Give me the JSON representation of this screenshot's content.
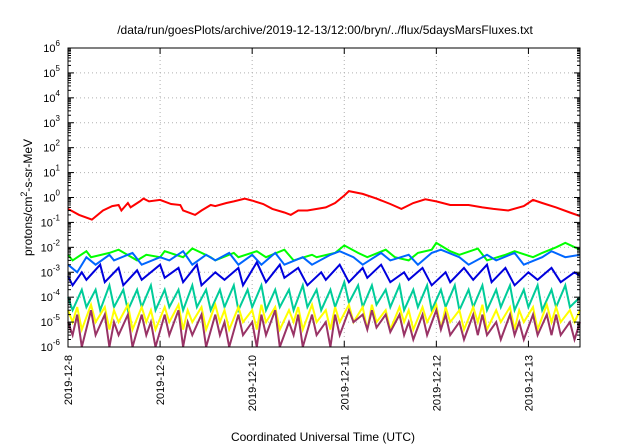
{
  "chart_data": {
    "type": "line",
    "title": "/data/run/goesPlots/archive/2019-12-13/12:00/bryn/../flux/5daysMarsFluxes.txt",
    "xlabel": "Coordinated Universal Time (UTC)",
    "ylabel": {
      "base": "protons/cm",
      "sup": "2",
      "rest": "-s-sr-MeV"
    },
    "y_scale": "log",
    "ylim": [
      1e-06,
      1000000
    ],
    "xlim": [
      0,
      5.56
    ],
    "x_unit": "days since 2019-12-08 00:00 UTC",
    "grid": true,
    "legend": "none",
    "x_ticks": [
      {
        "value": 0,
        "label": "2019-12-8"
      },
      {
        "value": 1,
        "label": "2019-12-9"
      },
      {
        "value": 2,
        "label": "2019-12-10"
      },
      {
        "value": 3,
        "label": "2019-12-11"
      },
      {
        "value": 4,
        "label": "2019-12-12"
      },
      {
        "value": 5,
        "label": "2019-12-13"
      }
    ],
    "y_ticks": [
      {
        "exp": -6,
        "label": "10",
        "sup": "-6"
      },
      {
        "exp": -5,
        "label": "10",
        "sup": "-5"
      },
      {
        "exp": -4,
        "label": "10",
        "sup": "-4"
      },
      {
        "exp": -3,
        "label": "10",
        "sup": "-3"
      },
      {
        "exp": -2,
        "label": "10",
        "sup": "-2"
      },
      {
        "exp": -1,
        "label": "10",
        "sup": "-1"
      },
      {
        "exp": 0,
        "label": "10",
        "sup": "0"
      },
      {
        "exp": 1,
        "label": "10",
        "sup": "1"
      },
      {
        "exp": 2,
        "label": "10",
        "sup": "2"
      },
      {
        "exp": 3,
        "label": "10",
        "sup": "3"
      },
      {
        "exp": 4,
        "label": "10",
        "sup": "4"
      },
      {
        "exp": 5,
        "label": "10",
        "sup": "5"
      },
      {
        "exp": 6,
        "label": "10",
        "sup": "6"
      }
    ],
    "series": [
      {
        "color": "#ff0000",
        "x": [
          0.0,
          0.12,
          0.26,
          0.38,
          0.48,
          0.55,
          0.58,
          0.65,
          0.68,
          0.78,
          0.82,
          0.88,
          1.0,
          1.12,
          1.22,
          1.25,
          1.38,
          1.45,
          1.55,
          1.6,
          1.72,
          1.8,
          1.92,
          2.0,
          2.12,
          2.22,
          2.35,
          2.42,
          2.5,
          2.6,
          2.8,
          2.9,
          3.0,
          3.05,
          3.2,
          3.35,
          3.5,
          3.62,
          3.75,
          3.88,
          4.0,
          4.15,
          4.35,
          4.5,
          4.62,
          4.78,
          4.95,
          5.05,
          5.15,
          5.3,
          5.45,
          5.56
        ],
        "y": [
          0.35,
          0.2,
          0.13,
          0.3,
          0.45,
          0.5,
          0.3,
          0.6,
          0.4,
          0.7,
          0.9,
          0.7,
          0.8,
          0.55,
          0.5,
          0.3,
          0.2,
          0.3,
          0.5,
          0.45,
          0.6,
          0.7,
          0.9,
          0.75,
          0.55,
          0.35,
          0.25,
          0.2,
          0.3,
          0.3,
          0.4,
          0.6,
          1.2,
          1.8,
          1.4,
          0.9,
          0.55,
          0.35,
          0.6,
          0.85,
          0.7,
          0.5,
          0.5,
          0.4,
          0.35,
          0.3,
          0.45,
          0.8,
          0.6,
          0.4,
          0.25,
          0.18
        ]
      },
      {
        "color": "#00ff00",
        "x": [
          0.0,
          0.05,
          0.2,
          0.25,
          0.45,
          0.55,
          0.75,
          0.85,
          1.0,
          1.05,
          1.25,
          1.35,
          1.55,
          1.6,
          1.8,
          1.85,
          2.05,
          2.15,
          2.35,
          2.45,
          2.65,
          2.7,
          2.9,
          3.0,
          3.15,
          3.25,
          3.45,
          3.55,
          3.7,
          3.8,
          3.95,
          4.0,
          4.15,
          4.25,
          4.45,
          4.55,
          4.75,
          4.85,
          5.05,
          5.15,
          5.3,
          5.4,
          5.56
        ],
        "y": [
          0.005,
          0.003,
          0.007,
          0.004,
          0.006,
          0.008,
          0.003,
          0.005,
          0.004,
          0.007,
          0.004,
          0.009,
          0.004,
          0.003,
          0.006,
          0.004,
          0.007,
          0.004,
          0.008,
          0.003,
          0.005,
          0.004,
          0.006,
          0.012,
          0.006,
          0.004,
          0.008,
          0.004,
          0.003,
          0.006,
          0.008,
          0.015,
          0.007,
          0.005,
          0.009,
          0.003,
          0.005,
          0.007,
          0.004,
          0.006,
          0.01,
          0.015,
          0.008
        ]
      },
      {
        "color": "#0066ff",
        "x": [
          0.0,
          0.1,
          0.2,
          0.3,
          0.45,
          0.5,
          0.7,
          0.8,
          1.0,
          1.1,
          1.25,
          1.35,
          1.5,
          1.6,
          1.75,
          1.85,
          2.0,
          2.1,
          2.25,
          2.35,
          2.55,
          2.65,
          2.85,
          2.95,
          3.1,
          3.2,
          3.4,
          3.5,
          3.7,
          3.8,
          3.95,
          4.05,
          4.25,
          4.35,
          4.55,
          4.65,
          4.85,
          4.95,
          5.15,
          5.25,
          5.4,
          5.56
        ],
        "y": [
          0.002,
          0.001,
          0.004,
          0.002,
          0.005,
          0.003,
          0.006,
          0.002,
          0.004,
          0.003,
          0.007,
          0.002,
          0.005,
          0.003,
          0.006,
          0.002,
          0.005,
          0.002,
          0.006,
          0.002,
          0.004,
          0.002,
          0.005,
          0.007,
          0.004,
          0.002,
          0.006,
          0.003,
          0.005,
          0.002,
          0.006,
          0.008,
          0.004,
          0.002,
          0.005,
          0.003,
          0.006,
          0.002,
          0.004,
          0.007,
          0.004,
          0.005
        ]
      },
      {
        "color": "#0000dd",
        "x": [
          0.0,
          0.05,
          0.15,
          0.2,
          0.35,
          0.4,
          0.55,
          0.6,
          0.75,
          0.8,
          1.0,
          1.05,
          1.2,
          1.25,
          1.4,
          1.45,
          1.6,
          1.7,
          1.85,
          1.9,
          2.05,
          2.15,
          2.3,
          2.35,
          2.5,
          2.6,
          2.75,
          2.8,
          2.95,
          3.05,
          3.2,
          3.25,
          3.4,
          3.5,
          3.65,
          3.7,
          3.85,
          3.95,
          4.1,
          4.15,
          4.3,
          4.4,
          4.55,
          4.6,
          4.75,
          4.85,
          5.0,
          5.1,
          5.25,
          5.35,
          5.5,
          5.56
        ],
        "y": [
          0.0007,
          0.0003,
          0.001,
          0.0005,
          0.002,
          0.0004,
          0.0015,
          0.0003,
          0.0012,
          0.0005,
          0.002,
          0.0006,
          0.0015,
          0.0004,
          0.002,
          0.0003,
          0.001,
          0.0005,
          0.0015,
          0.0003,
          0.0025,
          0.0004,
          0.002,
          0.0006,
          0.0015,
          0.0003,
          0.001,
          0.0005,
          0.002,
          0.0004,
          0.0015,
          0.0006,
          0.002,
          0.0004,
          0.001,
          0.0005,
          0.0015,
          0.0003,
          0.001,
          0.0004,
          0.0015,
          0.0005,
          0.002,
          0.0004,
          0.0015,
          0.0003,
          0.001,
          0.0005,
          0.0015,
          0.0004,
          0.001,
          0.0007
        ]
      },
      {
        "color": "#00cc99",
        "x": [
          0.0,
          0.05,
          0.15,
          0.2,
          0.3,
          0.35,
          0.45,
          0.5,
          0.6,
          0.65,
          0.75,
          0.8,
          0.9,
          0.95,
          1.05,
          1.1,
          1.2,
          1.25,
          1.35,
          1.4,
          1.5,
          1.55,
          1.65,
          1.7,
          1.8,
          1.85,
          1.95,
          2.0,
          2.1,
          2.15,
          2.25,
          2.3,
          2.4,
          2.45,
          2.55,
          2.6,
          2.7,
          2.75,
          2.85,
          2.9,
          3.0,
          3.05,
          3.15,
          3.2,
          3.3,
          3.35,
          3.45,
          3.5,
          3.6,
          3.65,
          3.75,
          3.8,
          3.9,
          3.95,
          4.05,
          4.1,
          4.2,
          4.25,
          4.35,
          4.4,
          4.5,
          4.55,
          4.65,
          4.7,
          4.8,
          4.85,
          4.95,
          5.0,
          5.1,
          5.15,
          5.25,
          5.3,
          5.4,
          5.45,
          5.56
        ],
        "y": [
          0.0001,
          3e-05,
          0.0002,
          4e-05,
          0.0002,
          3e-05,
          0.0003,
          4e-05,
          0.0002,
          3e-05,
          0.0002,
          4e-05,
          0.0003,
          3e-05,
          0.0002,
          4e-05,
          0.0002,
          3e-05,
          0.0003,
          4e-05,
          0.0002,
          3e-05,
          0.0002,
          4e-05,
          0.0003,
          3e-05,
          0.0002,
          4e-05,
          0.0003,
          3e-05,
          0.0002,
          4e-05,
          0.0002,
          3e-05,
          0.0003,
          4e-05,
          0.0002,
          3e-05,
          0.0002,
          4e-05,
          0.0004,
          6e-05,
          0.0003,
          4e-05,
          0.0003,
          5e-05,
          0.0002,
          4e-05,
          0.0003,
          3e-05,
          0.0002,
          4e-05,
          0.0003,
          3e-05,
          0.0002,
          4e-05,
          0.0003,
          3e-05,
          0.0002,
          4e-05,
          0.0003,
          3e-05,
          0.0002,
          4e-05,
          0.0003,
          3e-05,
          0.0002,
          4e-05,
          0.0003,
          3e-05,
          0.0002,
          4e-05,
          0.0003,
          4e-05,
          0.0001
        ]
      },
      {
        "color": "#ffff00",
        "x": [
          0.0,
          0.05,
          0.1,
          0.15,
          0.25,
          0.3,
          0.4,
          0.45,
          0.5,
          0.55,
          0.65,
          0.7,
          0.8,
          0.85,
          0.9,
          0.95,
          1.05,
          1.1,
          1.2,
          1.25,
          1.3,
          1.35,
          1.45,
          1.5,
          1.6,
          1.65,
          1.7,
          1.75,
          1.85,
          1.9,
          2.0,
          2.05,
          2.1,
          2.15,
          2.25,
          2.3,
          2.4,
          2.45,
          2.5,
          2.55,
          2.65,
          2.7,
          2.8,
          2.85,
          2.9,
          2.95,
          3.05,
          3.1,
          3.2,
          3.25,
          3.3,
          3.35,
          3.45,
          3.5,
          3.6,
          3.65,
          3.7,
          3.75,
          3.85,
          3.9,
          4.0,
          4.05,
          4.1,
          4.15,
          4.25,
          4.3,
          4.4,
          4.45,
          4.5,
          4.55,
          4.65,
          4.7,
          4.8,
          4.85,
          4.9,
          4.95,
          5.05,
          5.1,
          5.2,
          5.25,
          5.3,
          5.35,
          5.45,
          5.5,
          5.56
        ],
        "y": [
          3e-05,
          1e-05,
          4e-05,
          5e-06,
          5e-05,
          1e-05,
          4e-05,
          5e-06,
          3e-05,
          1e-05,
          5e-05,
          5e-06,
          4e-05,
          1e-05,
          3e-05,
          5e-06,
          4e-05,
          1e-05,
          5e-05,
          5e-06,
          3e-05,
          1e-05,
          4e-05,
          5e-06,
          5e-05,
          1e-05,
          3e-05,
          5e-06,
          4e-05,
          1e-05,
          3e-05,
          5e-06,
          5e-05,
          1e-05,
          4e-05,
          5e-06,
          3e-05,
          1e-05,
          4e-05,
          5e-06,
          5e-05,
          1e-05,
          3e-05,
          5e-06,
          4e-05,
          1e-05,
          5e-05,
          1e-05,
          4e-05,
          5e-06,
          5e-05,
          1e-05,
          3e-05,
          5e-06,
          4e-05,
          1e-05,
          3e-05,
          5e-06,
          4e-05,
          1e-05,
          5e-05,
          5e-06,
          4e-05,
          1e-05,
          3e-05,
          5e-06,
          4e-05,
          1e-05,
          5e-05,
          5e-06,
          3e-05,
          1e-05,
          4e-05,
          5e-06,
          3e-05,
          1e-05,
          4e-05,
          5e-06,
          5e-05,
          1e-05,
          4e-05,
          1e-05,
          3e-05,
          1e-05,
          3e-05
        ]
      },
      {
        "color": "#993366",
        "x": [
          0.0,
          0.05,
          0.1,
          0.15,
          0.25,
          0.3,
          0.4,
          0.45,
          0.5,
          0.55,
          0.65,
          0.7,
          0.8,
          0.85,
          0.9,
          0.95,
          1.05,
          1.1,
          1.2,
          1.25,
          1.3,
          1.35,
          1.45,
          1.5,
          1.6,
          1.65,
          1.7,
          1.75,
          1.85,
          1.9,
          2.0,
          2.05,
          2.1,
          2.15,
          2.25,
          2.3,
          2.4,
          2.45,
          2.5,
          2.55,
          2.65,
          2.7,
          2.8,
          2.85,
          2.9,
          2.95,
          3.05,
          3.1,
          3.2,
          3.25,
          3.3,
          3.35,
          3.45,
          3.5,
          3.6,
          3.65,
          3.7,
          3.75,
          3.85,
          3.9,
          4.0,
          4.05,
          4.1,
          4.15,
          4.25,
          4.3,
          4.4,
          4.45,
          4.5,
          4.55,
          4.65,
          4.7,
          4.8,
          4.85,
          4.9,
          4.95,
          5.05,
          5.1,
          5.2,
          5.25,
          5.3,
          5.35,
          5.45,
          5.5,
          5.56
        ],
        "y": [
          1e-05,
          3e-06,
          2e-05,
          1e-06,
          3e-05,
          3e-06,
          2e-05,
          1e-06,
          1e-05,
          3e-06,
          2e-05,
          1e-06,
          2e-05,
          3e-06,
          1e-05,
          1e-06,
          2e-05,
          3e-06,
          3e-05,
          1e-06,
          1e-05,
          3e-06,
          2e-05,
          1e-06,
          2e-05,
          3e-06,
          1e-05,
          1e-06,
          2e-05,
          3e-06,
          1e-05,
          1e-06,
          2e-05,
          3e-06,
          3e-05,
          1e-06,
          1e-05,
          3e-06,
          2e-05,
          1e-06,
          2e-05,
          3e-06,
          1e-05,
          1e-06,
          2e-05,
          3e-06,
          3e-05,
          1e-05,
          2e-05,
          5e-06,
          3e-05,
          6e-06,
          2e-05,
          4e-06,
          2e-05,
          3e-06,
          1e-05,
          2e-06,
          2e-05,
          3e-06,
          3e-05,
          5e-06,
          2e-05,
          3e-06,
          1e-05,
          2e-06,
          2e-05,
          3e-06,
          2e-05,
          3e-06,
          1e-05,
          2e-06,
          2e-05,
          3e-06,
          1e-05,
          2e-06,
          2e-05,
          3e-06,
          2e-05,
          3e-06,
          2e-05,
          3e-06,
          1e-05,
          2e-06,
          1e-05
        ]
      }
    ]
  }
}
